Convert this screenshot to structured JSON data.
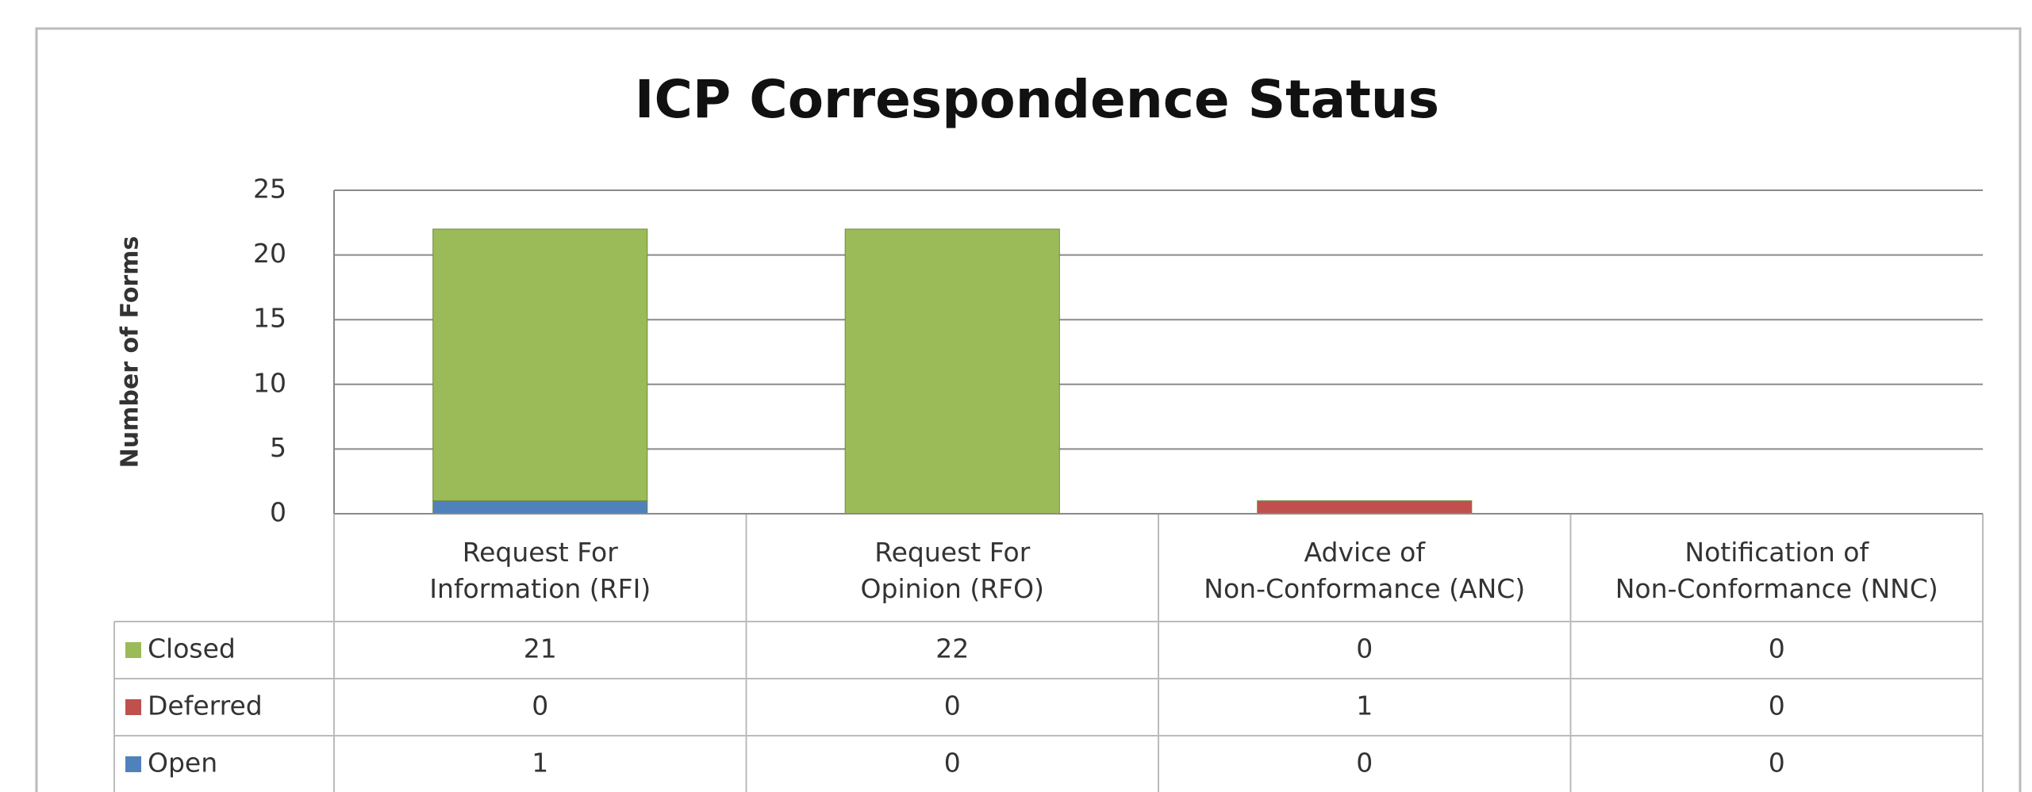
{
  "chart_data": {
    "type": "bar",
    "stacked": true,
    "title": "ICP Correspondence Status",
    "y_label": "Number of Forms",
    "categories": [
      "Request For Information (RFI)",
      "Request For Opinion (RFO)",
      "Advice of Non-Conformance (ANC)",
      "Notification of Non-Conformance (NNC)"
    ],
    "series": [
      {
        "name": "Closed",
        "color": "#9bbb59",
        "values": [
          21,
          22,
          0,
          0
        ]
      },
      {
        "name": "Deferred",
        "color": "#c0504d",
        "values": [
          0,
          0,
          1,
          0
        ]
      },
      {
        "name": "Open",
        "color": "#4f81bd",
        "values": [
          1,
          0,
          0,
          0
        ]
      }
    ],
    "ylim": [
      0,
      25
    ],
    "yticks": [
      0,
      5,
      10,
      15,
      20,
      25
    ],
    "grid": true,
    "data_table": true
  }
}
